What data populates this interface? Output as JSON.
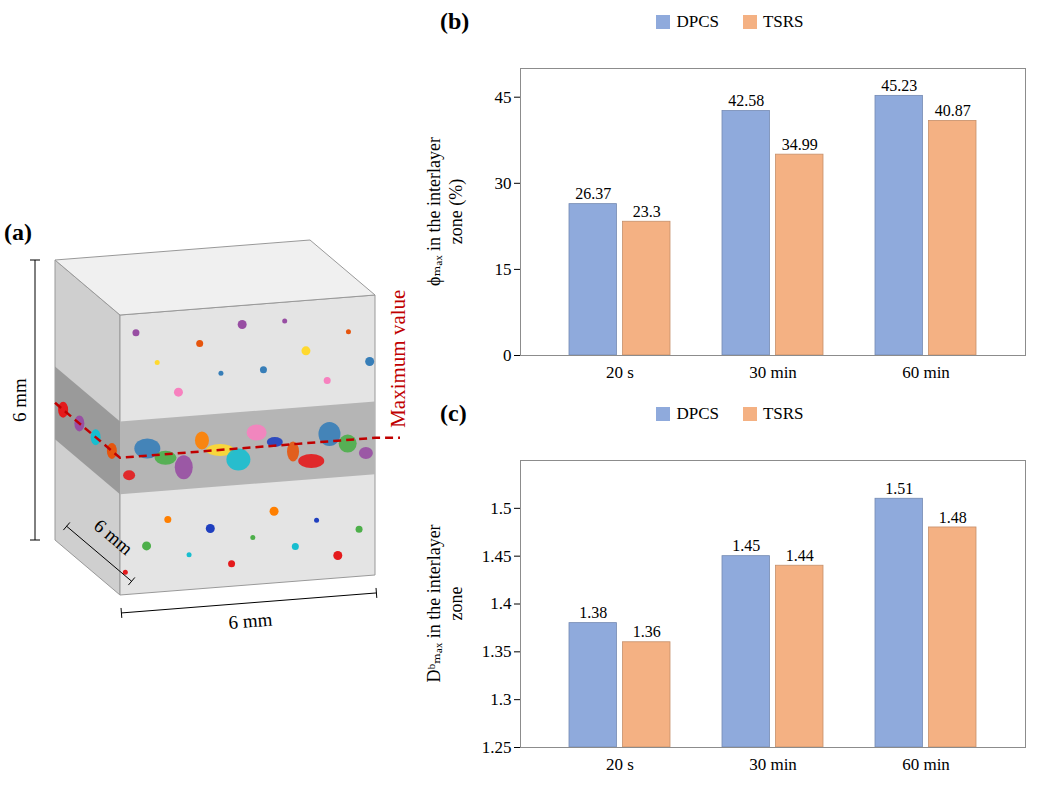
{
  "diagram": {
    "panel_label": "(a)",
    "dimensions": [
      "6 mm",
      "6 mm",
      "6 mm"
    ],
    "annotation": "Maximum value"
  },
  "chart_data": [
    {
      "type": "bar",
      "panel_label": "(b)",
      "y_label": "ϕₘₐₓ in the interlayer zone (%)",
      "categories": [
        "20 s",
        "30 min",
        "60 min"
      ],
      "series": [
        {
          "name": "DPCS",
          "color": "#8FAADC",
          "values": [
            26.37,
            42.58,
            45.23
          ]
        },
        {
          "name": "TSRS",
          "color": "#F4B183",
          "values": [
            23.3,
            34.99,
            40.87
          ]
        }
      ],
      "ylim": [
        0,
        50
      ],
      "yticks": [
        0,
        15,
        30,
        45
      ],
      "data_labels": true,
      "legend": "top"
    },
    {
      "type": "bar",
      "panel_label": "(c)",
      "y_label": "Dᵇₘₐₓ in the interlayer zone",
      "categories": [
        "20 s",
        "30 min",
        "60 min"
      ],
      "series": [
        {
          "name": "DPCS",
          "color": "#8FAADC",
          "values": [
            1.38,
            1.45,
            1.51
          ]
        },
        {
          "name": "TSRS",
          "color": "#F4B183",
          "values": [
            1.36,
            1.44,
            1.48
          ]
        }
      ],
      "ylim": [
        1.25,
        1.55
      ],
      "yticks": [
        1.25,
        1.3,
        1.35,
        1.4,
        1.45,
        1.5
      ],
      "data_labels": true,
      "legend": "top"
    }
  ]
}
